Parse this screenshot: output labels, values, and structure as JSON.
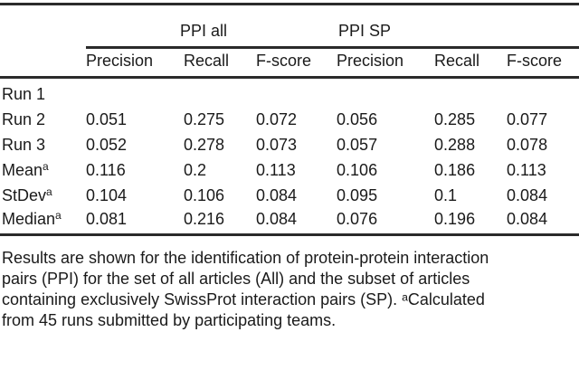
{
  "colors": {
    "background": "#ffffff",
    "text": "#1a1a1a",
    "rule": "#2b2b2b"
  },
  "table": {
    "group_headers": [
      "PPI all",
      "PPI SP"
    ],
    "column_headers": [
      "Precision",
      "Recall",
      "F-score",
      "Precision",
      "Recall",
      "F-score"
    ],
    "rows": [
      {
        "label": "Run 1",
        "sup": "",
        "values": [
          "",
          "",
          "",
          "",
          "",
          ""
        ]
      },
      {
        "label": "Run 2",
        "sup": "",
        "values": [
          "0.051",
          "0.275",
          "0.072",
          "0.056",
          "0.285",
          "0.077"
        ]
      },
      {
        "label": "Run 3",
        "sup": "",
        "values": [
          "0.052",
          "0.278",
          "0.073",
          "0.057",
          "0.288",
          "0.078"
        ]
      },
      {
        "label": "Mean",
        "sup": "a",
        "values": [
          "0.116",
          "0.2",
          "0.113",
          "0.106",
          "0.186",
          "0.113"
        ]
      },
      {
        "label": "StDev",
        "sup": "a",
        "values": [
          "0.104",
          "0.106",
          "0.084",
          "0.095",
          "0.1",
          "0.084"
        ]
      },
      {
        "label": "Median",
        "sup": "a",
        "values": [
          "0.081",
          "0.216",
          "0.084",
          "0.076",
          "0.196",
          "0.084"
        ]
      }
    ]
  },
  "caption": {
    "lines": [
      "Results are shown for the identification of protein-protein interaction",
      "pairs (PPI) for the set of all articles (All) and the subset of articles",
      "containing exclusively SwissProt interaction pairs (SP). ᵃCalculated",
      "from 45 runs submitted by participating teams."
    ]
  }
}
